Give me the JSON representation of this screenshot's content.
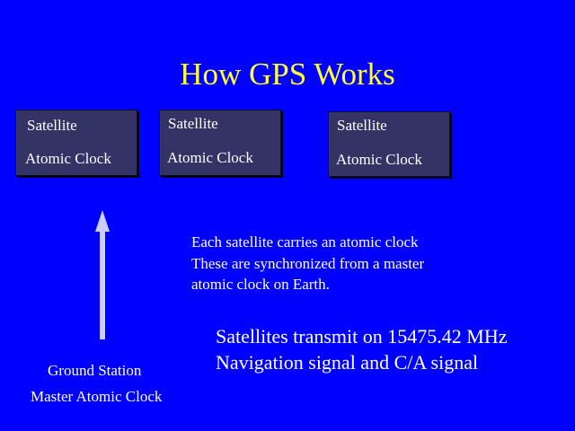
{
  "title": "How GPS Works",
  "satellites": [
    {
      "name": "Satellite",
      "clock": "Atomic Clock"
    },
    {
      "name": "Satellite",
      "clock": "Atomic Clock"
    },
    {
      "name": "Satellite",
      "clock": "Atomic Clock"
    }
  ],
  "description": [
    "Each satellite carries an atomic clock",
    "These are synchronized from a master",
    "atomic clock on Earth."
  ],
  "transmission": [
    "Satellites transmit on 15475.42 MHz",
    "Navigation signal and C/A signal"
  ],
  "ground_station": {
    "name": "Ground Station",
    "clock": "Master Atomic Clock"
  },
  "colors": {
    "background": "#0000ff",
    "title": "#ffff33",
    "box_fill": "#333366",
    "arrow": "#ccccff",
    "text": "#ffffff"
  }
}
